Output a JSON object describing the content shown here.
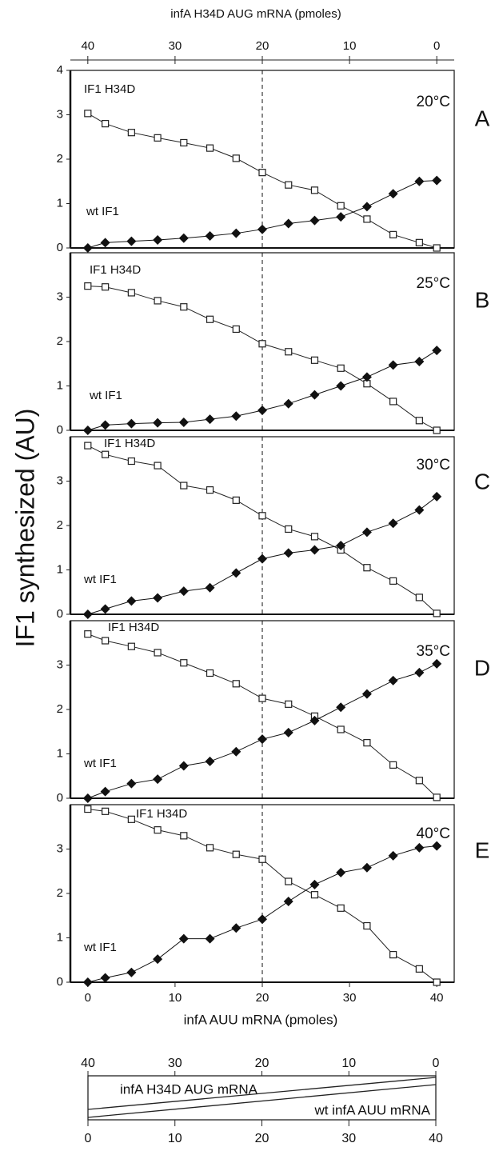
{
  "y_label": "IF1 synthesized (AU)",
  "top_axis": {
    "label": "infA H34D AUG mRNA (pmoles)",
    "xlim": [
      42,
      -2
    ],
    "xticks": [
      40,
      30,
      20,
      10,
      0
    ]
  },
  "chart_data": [
    {
      "type": "line",
      "panel_label": "A",
      "temperature": "20°C",
      "xlim": [
        -2,
        42
      ],
      "ylim": [
        0,
        4
      ],
      "yticks": [
        0,
        1,
        2,
        3,
        4
      ],
      "vline": 20,
      "x": [
        0,
        2,
        5,
        8,
        11,
        14,
        17,
        20,
        23,
        26,
        29,
        32,
        35,
        38,
        40
      ],
      "series": [
        {
          "name": "IF1 H34D",
          "color": "#222222",
          "marker": "square",
          "values": [
            3.03,
            2.8,
            2.6,
            2.48,
            2.37,
            2.25,
            2.02,
            1.7,
            1.42,
            1.3,
            0.95,
            0.65,
            0.3,
            0.12,
            0.0
          ]
        },
        {
          "name": "wt IF1",
          "color": "#111111",
          "marker": "diamond",
          "values": [
            0.0,
            0.12,
            0.15,
            0.18,
            0.22,
            0.27,
            0.33,
            0.42,
            0.55,
            0.62,
            0.7,
            0.93,
            1.22,
            1.5,
            1.52
          ]
        }
      ]
    },
    {
      "type": "line",
      "panel_label": "B",
      "temperature": "25°C",
      "xlim": [
        -2,
        42
      ],
      "ylim": [
        0,
        4
      ],
      "yticks": [
        0,
        1,
        2,
        3
      ],
      "vline": 20,
      "x": [
        0,
        2,
        5,
        8,
        11,
        14,
        17,
        20,
        23,
        26,
        29,
        32,
        35,
        38,
        40
      ],
      "series": [
        {
          "name": "IF1 H34D",
          "color": "#222222",
          "marker": "square",
          "values": [
            3.25,
            3.23,
            3.1,
            2.92,
            2.78,
            2.5,
            2.28,
            1.95,
            1.77,
            1.58,
            1.4,
            1.05,
            0.65,
            0.22,
            0.0
          ]
        },
        {
          "name": "wt IF1",
          "color": "#111111",
          "marker": "diamond",
          "values": [
            0.0,
            0.12,
            0.15,
            0.17,
            0.18,
            0.25,
            0.32,
            0.45,
            0.6,
            0.8,
            1.0,
            1.2,
            1.47,
            1.55,
            1.8
          ]
        }
      ]
    },
    {
      "type": "line",
      "panel_label": "C",
      "temperature": "30°C",
      "xlim": [
        -2,
        42
      ],
      "ylim": [
        0,
        4
      ],
      "yticks": [
        0,
        1,
        2,
        3
      ],
      "vline": 20,
      "x": [
        0,
        2,
        5,
        8,
        11,
        14,
        17,
        20,
        23,
        26,
        29,
        32,
        35,
        38,
        40
      ],
      "series": [
        {
          "name": "IF1 H34D",
          "color": "#222222",
          "marker": "square",
          "values": [
            3.8,
            3.6,
            3.45,
            3.35,
            2.9,
            2.8,
            2.57,
            2.22,
            1.92,
            1.75,
            1.45,
            1.05,
            0.75,
            0.38,
            0.02
          ]
        },
        {
          "name": "wt IF1",
          "color": "#111111",
          "marker": "diamond",
          "values": [
            0.0,
            0.12,
            0.3,
            0.37,
            0.52,
            0.6,
            0.93,
            1.25,
            1.38,
            1.45,
            1.55,
            1.85,
            2.05,
            2.35,
            2.65
          ]
        }
      ]
    },
    {
      "type": "line",
      "panel_label": "D",
      "temperature": "35°C",
      "xlim": [
        -2,
        42
      ],
      "ylim": [
        0,
        4
      ],
      "yticks": [
        0,
        1,
        2,
        3
      ],
      "vline": 20,
      "x": [
        0,
        2,
        5,
        8,
        11,
        14,
        17,
        20,
        23,
        26,
        29,
        32,
        35,
        38,
        40
      ],
      "series": [
        {
          "name": "IF1 H34D",
          "color": "#222222",
          "marker": "square",
          "values": [
            3.7,
            3.55,
            3.42,
            3.28,
            3.05,
            2.82,
            2.58,
            2.25,
            2.12,
            1.85,
            1.55,
            1.25,
            0.75,
            0.4,
            0.02
          ]
        },
        {
          "name": "wt IF1",
          "color": "#111111",
          "marker": "diamond",
          "values": [
            0.0,
            0.15,
            0.33,
            0.43,
            0.73,
            0.83,
            1.05,
            1.33,
            1.48,
            1.75,
            2.05,
            2.35,
            2.65,
            2.83,
            3.03
          ]
        }
      ]
    },
    {
      "type": "line",
      "panel_label": "E",
      "temperature": "40°C",
      "xlim": [
        -2,
        42
      ],
      "ylim": [
        0,
        4
      ],
      "yticks": [
        0,
        1,
        2,
        3
      ],
      "vline": 20,
      "x_label": "infA AUU mRNA (pmoles)",
      "xticks": [
        0,
        10,
        20,
        30,
        40
      ],
      "x": [
        0,
        2,
        5,
        8,
        11,
        14,
        17,
        20,
        23,
        26,
        29,
        32,
        35,
        38,
        40
      ],
      "series": [
        {
          "name": "IF1 H34D",
          "color": "#222222",
          "marker": "square",
          "values": [
            3.9,
            3.85,
            3.67,
            3.43,
            3.3,
            3.03,
            2.88,
            2.77,
            2.27,
            1.97,
            1.67,
            1.27,
            0.62,
            0.3,
            0.0
          ]
        },
        {
          "name": "wt IF1",
          "color": "#111111",
          "marker": "diamond",
          "values": [
            0.0,
            0.1,
            0.22,
            0.52,
            0.98,
            0.98,
            1.22,
            1.42,
            1.82,
            2.2,
            2.47,
            2.58,
            2.85,
            3.03,
            3.07
          ]
        }
      ]
    }
  ],
  "schematic": {
    "top_ticks": [
      40,
      30,
      20,
      10,
      0
    ],
    "bottom_ticks": [
      0,
      10,
      20,
      30,
      40
    ],
    "xlim": [
      0,
      40
    ],
    "upper_label": "infA H34D AUG mRNA",
    "lower_label": "wt infA AUU mRNA"
  }
}
